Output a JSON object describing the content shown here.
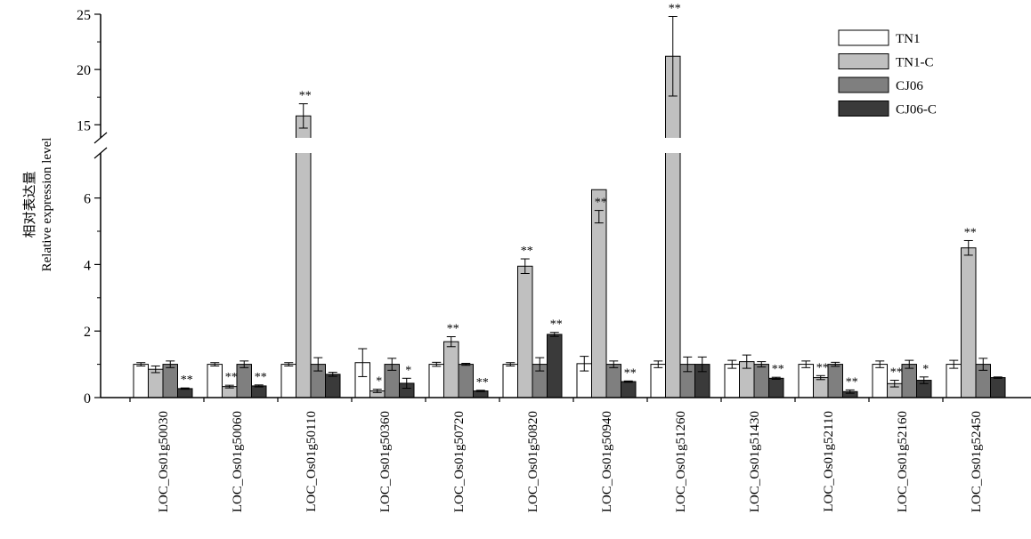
{
  "chart_data": {
    "type": "bar",
    "ylabel_line1": "相对表达量",
    "ylabel_line2": "Relative expression level",
    "ylim": [
      0,
      25
    ],
    "axis_break": {
      "from": 7,
      "to": 14.5
    },
    "yticks": [
      0,
      2,
      4,
      6,
      15,
      20,
      25
    ],
    "grid": false,
    "legend_position": "top-right",
    "categories": [
      "LOC_Os01g50030",
      "LOC_Os01g50060",
      "LOC_Os01g50110",
      "LOC_Os01g50360",
      "LOC_Os01g50720",
      "LOC_Os01g50820",
      "LOC_Os01g50940",
      "LOC_Os01g51260",
      "LOC_Os01g51430",
      "LOC_Os01g52110",
      "LOC_Os01g52160",
      "LOC_Os01g52450"
    ],
    "series": [
      {
        "name": "TN1",
        "color": "#ffffff",
        "values": [
          1.0,
          1.0,
          1.0,
          1.05,
          1.0,
          1.0,
          1.02,
          1.0,
          1.0,
          1.0,
          1.0,
          1.0
        ],
        "errors": [
          0.05,
          0.05,
          0.05,
          0.42,
          0.06,
          0.05,
          0.22,
          0.1,
          0.12,
          0.1,
          0.1,
          0.12
        ],
        "sig": [
          "",
          "",
          "",
          "",
          "",
          "",
          "",
          "",
          "",
          "",
          "",
          ""
        ]
      },
      {
        "name": "TN1-C",
        "color": "#c0c0c0",
        "values": [
          0.85,
          0.33,
          15.8,
          0.2,
          1.68,
          3.95,
          6.25,
          21.2,
          1.08,
          0.6,
          0.42,
          4.5
        ],
        "errors": [
          0.1,
          0.04,
          1.1,
          0.05,
          0.15,
          0.22,
          1.0,
          3.6,
          0.2,
          0.06,
          0.1,
          0.22
        ],
        "sig": [
          "",
          "**",
          "**",
          "*",
          "**",
          "**",
          "**",
          "**",
          "",
          "**",
          "**",
          "**"
        ]
      },
      {
        "name": "CJ06",
        "color": "#7f7f7f",
        "values": [
          1.0,
          1.0,
          1.0,
          1.0,
          1.0,
          1.0,
          1.0,
          1.0,
          1.0,
          1.0,
          1.0,
          1.0
        ],
        "errors": [
          0.1,
          0.1,
          0.2,
          0.18,
          0.03,
          0.2,
          0.1,
          0.22,
          0.08,
          0.06,
          0.12,
          0.18
        ],
        "sig": [
          "",
          "",
          "",
          "",
          "",
          "",
          "",
          "",
          "",
          "",
          "",
          ""
        ]
      },
      {
        "name": "CJ06-C",
        "color": "#3a3a3a",
        "values": [
          0.27,
          0.35,
          0.7,
          0.43,
          0.2,
          1.9,
          0.48,
          1.0,
          0.58,
          0.18,
          0.52,
          0.6
        ],
        "errors": [
          0.02,
          0.03,
          0.06,
          0.15,
          0.02,
          0.06,
          0.02,
          0.22,
          0.03,
          0.05,
          0.1,
          0.02
        ],
        "sig": [
          "**",
          "**",
          "",
          "*",
          "**",
          "**",
          "**",
          "",
          "**",
          "**",
          "*",
          ""
        ]
      }
    ]
  }
}
